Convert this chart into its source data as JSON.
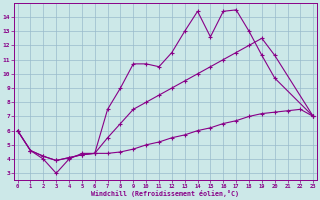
{
  "xlabel": "Windchill (Refroidissement éolien,°C)",
  "bg_color": "#cce8e8",
  "line_color": "#880088",
  "grid_color": "#99bbcc",
  "xlim": [
    -0.3,
    23.3
  ],
  "ylim": [
    2.5,
    15.0
  ],
  "xticks": [
    0,
    1,
    2,
    3,
    4,
    5,
    6,
    7,
    8,
    9,
    10,
    11,
    12,
    13,
    14,
    15,
    16,
    17,
    18,
    19,
    20,
    21,
    22,
    23
  ],
  "yticks": [
    3,
    4,
    5,
    6,
    7,
    8,
    9,
    10,
    11,
    12,
    13,
    14
  ],
  "line_bottom_x": [
    0,
    1,
    2,
    3,
    4,
    5,
    6,
    7,
    8,
    9,
    10,
    11,
    12,
    13,
    14,
    15,
    16,
    17,
    18,
    19,
    20,
    21,
    22,
    23
  ],
  "line_bottom_y": [
    6.0,
    4.6,
    4.2,
    3.9,
    4.1,
    4.3,
    4.4,
    4.4,
    4.5,
    4.7,
    5.0,
    5.2,
    5.5,
    5.7,
    6.0,
    6.2,
    6.5,
    6.7,
    7.0,
    7.2,
    7.3,
    7.4,
    7.5,
    7.0
  ],
  "line_mid_x": [
    0,
    1,
    2,
    3,
    4,
    5,
    6,
    7,
    8,
    9,
    10,
    11,
    12,
    13,
    14,
    15,
    16,
    17,
    18,
    19,
    20,
    23
  ],
  "line_mid_y": [
    6.0,
    4.6,
    4.2,
    3.9,
    4.1,
    4.3,
    4.4,
    5.5,
    6.5,
    7.5,
    8.0,
    8.5,
    9.0,
    9.5,
    10.0,
    10.5,
    11.0,
    11.5,
    12.0,
    12.5,
    11.3,
    7.0
  ],
  "line_upper_x": [
    0,
    1,
    2,
    3,
    4,
    5,
    6,
    7,
    8,
    9,
    10,
    11,
    12,
    13,
    14,
    15,
    16,
    17,
    18,
    19,
    20,
    23
  ],
  "line_upper_y": [
    6.0,
    4.6,
    4.0,
    3.0,
    4.0,
    4.4,
    4.4,
    7.5,
    9.0,
    10.7,
    10.7,
    10.5,
    11.5,
    13.0,
    14.4,
    12.6,
    14.4,
    14.5,
    13.0,
    11.3,
    9.7,
    7.0
  ]
}
